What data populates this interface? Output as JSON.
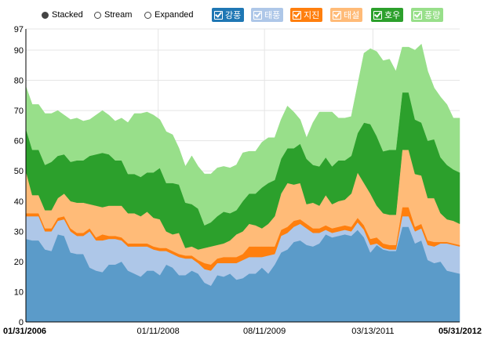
{
  "controls": [
    {
      "label": "Stacked",
      "selected": true
    },
    {
      "label": "Stream",
      "selected": false
    },
    {
      "label": "Expanded",
      "selected": false
    }
  ],
  "chart_data": {
    "type": "area",
    "stacked": true,
    "ylim": [
      0,
      97
    ],
    "y_ticks": [
      0,
      10,
      20,
      30,
      40,
      50,
      60,
      70,
      80,
      90,
      97
    ],
    "x_ticks": [
      "01/31/2006",
      "01/11/2008",
      "08/11/2009",
      "03/13/2011",
      "05/31/2012"
    ],
    "grid": true,
    "legend_position": "top-right",
    "series": [
      {
        "name": "강풍",
        "color": "#5b9bc9",
        "values": [
          27.5,
          27,
          27,
          24,
          23.5,
          29,
          28.5,
          23,
          22.5,
          22.5,
          18,
          17,
          16.5,
          19,
          19,
          20,
          17,
          16,
          15,
          17,
          17,
          15.5,
          19,
          18,
          15.5,
          15.5,
          17,
          16,
          13,
          12,
          15.5,
          15,
          16,
          14,
          14.5,
          16,
          16,
          18,
          16,
          19,
          23,
          24,
          26.5,
          27,
          25.5,
          25,
          26,
          29,
          28,
          28.5,
          29,
          28.5,
          30.5,
          28,
          23,
          25.5,
          24,
          23.5,
          23.5,
          31.5,
          31.5,
          26,
          27,
          20.5,
          19.5,
          20,
          17,
          16.5,
          16
        ]
      },
      {
        "name": "태풍",
        "color": "#aec7e8",
        "values": [
          7.5,
          8,
          8,
          6,
          6.5,
          4.5,
          5.5,
          7,
          6,
          6,
          12,
          10,
          10.5,
          8.5,
          8.5,
          7,
          8,
          9,
          10,
          8,
          7,
          8,
          4.5,
          4.5,
          6,
          5.5,
          4,
          3.5,
          4.5,
          5,
          4,
          4.5,
          3.5,
          5.5,
          6,
          5.5,
          5.5,
          3.5,
          6,
          3.5,
          5.5,
          5.5,
          5,
          5.5,
          5.5,
          4.5,
          3.5,
          1.5,
          1.5,
          1.5,
          1.5,
          1.5,
          2.5,
          2.5,
          2.5,
          0.5,
          0.5,
          0.5,
          0.5,
          3.5,
          3.5,
          4,
          4,
          5,
          5.5,
          6,
          9,
          9,
          9
        ]
      },
      {
        "name": "지진",
        "color": "#ff7f0e",
        "values": [
          1,
          1,
          1,
          1,
          1,
          1,
          1,
          1,
          1,
          1,
          1,
          1,
          2,
          1,
          1,
          1,
          1,
          1,
          1,
          1,
          1,
          1,
          1,
          1,
          1,
          1,
          1,
          1,
          2,
          2,
          1.5,
          2,
          2,
          2,
          2,
          3.5,
          3.5,
          3.5,
          3,
          2.5,
          2,
          2,
          2,
          1.5,
          1.5,
          1.5,
          1.5,
          1.5,
          1.5,
          1.5,
          1.5,
          1.5,
          1.5,
          1.5,
          2,
          2,
          1.5,
          1.5,
          1.5,
          3,
          3,
          1.5,
          1.5,
          1.5,
          1.5,
          0.5,
          0.5,
          0.5,
          0.5
        ]
      },
      {
        "name": "태설",
        "color": "#ffbb78",
        "values": [
          14,
          6,
          6,
          6,
          6,
          6.5,
          7.5,
          9,
          10,
          10,
          8,
          10.5,
          9,
          10,
          10,
          10.5,
          10,
          10,
          9,
          10.5,
          9.5,
          9.5,
          5.5,
          5.5,
          7,
          2.5,
          3,
          3.5,
          5,
          6,
          4.5,
          4.5,
          5.5,
          7.5,
          7.5,
          7.5,
          7,
          6,
          7.5,
          10,
          12,
          14.5,
          12,
          12,
          6.5,
          8.5,
          7.5,
          10,
          8,
          8.5,
          8.5,
          11,
          15,
          14,
          15,
          10.5,
          10,
          10,
          10,
          19,
          19,
          17.5,
          16,
          14,
          14.5,
          9.5,
          7.5,
          7.5,
          7
        ]
      },
      {
        "name": "호우",
        "color": "#2ca02c",
        "values": [
          14,
          15,
          15,
          15,
          16,
          14,
          13,
          13,
          14,
          14,
          16,
          17,
          18,
          17,
          15,
          15,
          13,
          13,
          13,
          13,
          15,
          17,
          16,
          17,
          16,
          15,
          14,
          13.5,
          7.5,
          8,
          9.5,
          10.5,
          9,
          8,
          10,
          10,
          10.5,
          13.5,
          13.5,
          12,
          11.5,
          11.5,
          12,
          13,
          15,
          12.5,
          13,
          12.5,
          12.5,
          13.5,
          13,
          12.5,
          13,
          20,
          23,
          23,
          20.5,
          21.5,
          21.5,
          19,
          19,
          18,
          17.5,
          19,
          19.5,
          18.5,
          18,
          17,
          17
        ]
      },
      {
        "name": "풍량",
        "color": "#98df8a",
        "values": [
          14,
          15,
          15,
          17,
          16,
          15,
          13,
          14,
          14,
          13,
          12,
          13,
          14,
          13,
          13,
          14,
          17,
          20,
          21,
          20,
          19,
          16,
          17,
          16,
          12,
          12,
          16,
          14,
          17,
          16,
          16,
          15,
          15,
          15,
          16,
          14,
          14,
          15,
          15,
          14,
          13,
          14,
          12,
          8,
          7,
          14,
          18,
          15,
          18,
          14,
          14,
          13,
          16,
          23,
          25,
          28,
          30,
          30,
          26,
          15,
          15,
          23,
          26,
          23,
          17,
          20,
          20,
          17,
          18
        ]
      }
    ]
  }
}
